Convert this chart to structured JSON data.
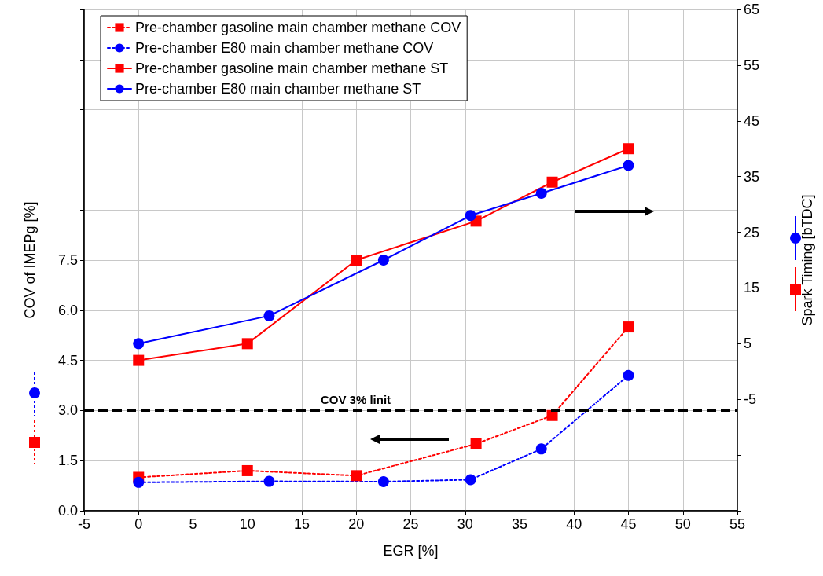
{
  "chart_data": {
    "type": "line",
    "xlabel": "EGR [%]",
    "ylabel": "COV of IMEPg [%]",
    "y2label": "Spark Timing [bTDC]",
    "xlim": [
      -5,
      55
    ],
    "xticks": [
      -5,
      0,
      5,
      10,
      15,
      20,
      25,
      30,
      35,
      40,
      45,
      50,
      55
    ],
    "ylim": [
      0,
      15
    ],
    "yticks": [
      {
        "value": 0,
        "label": "0.0"
      },
      {
        "value": 1.5,
        "label": "1.5"
      },
      {
        "value": 3,
        "label": "3.0"
      },
      {
        "value": 4.5,
        "label": "4.5"
      },
      {
        "value": 6,
        "label": "6.0"
      },
      {
        "value": 7.5,
        "label": "7.5"
      },
      {
        "value": 9,
        "label": null
      },
      {
        "value": 10.5,
        "label": null
      },
      {
        "value": 12,
        "label": null
      },
      {
        "value": 13.5,
        "label": null
      },
      {
        "value": 15,
        "label": null
      }
    ],
    "y2lim": [
      -25,
      65
    ],
    "y2ticks": [
      {
        "value": -25,
        "label": null
      },
      {
        "value": -15,
        "label": null
      },
      -5,
      5,
      15,
      25,
      35,
      45,
      55,
      65
    ],
    "grid": true,
    "legend": "top left",
    "series": [
      {
        "name": "Pre-chamber gasoline main chamber methane COV",
        "color": "#ff0000",
        "marker": "square",
        "line_style": "dotted",
        "x": [
          0,
          10,
          20,
          31,
          38,
          45
        ],
        "values": [
          1.0,
          1.2,
          1.05,
          2.0,
          2.85,
          5.5
        ]
      },
      {
        "name": "Pre-chamber E80 main chamber methane COV",
        "color": "#0000ff",
        "marker": "circle",
        "line_style": "dotted",
        "x": [
          0,
          12,
          22.5,
          30.5,
          37,
          45
        ],
        "values": [
          0.85,
          0.88,
          0.87,
          0.93,
          1.85,
          4.05
        ]
      },
      {
        "name": "Pre-chamber gasoline main chamber methane ST",
        "color": "#ff0000",
        "marker": "square",
        "line_style": "solid",
        "axis": "y2",
        "x": [
          0,
          10,
          20,
          31,
          38,
          45
        ],
        "values": [
          2,
          5,
          20,
          27,
          34,
          40
        ]
      },
      {
        "name": "Pre-chamber E80 main chamber methane ST",
        "color": "#0000ff",
        "marker": "circle",
        "line_style": "solid",
        "axis": "y2",
        "x": [
          0,
          12,
          22.5,
          30.5,
          37,
          45
        ],
        "values": [
          5,
          10,
          20,
          28,
          32,
          37
        ]
      }
    ],
    "ref_lines": [
      {
        "axis": "y",
        "value": 3,
        "label": "COV 3% linit",
        "color": "#000000",
        "line_style": "dashed"
      }
    ]
  }
}
